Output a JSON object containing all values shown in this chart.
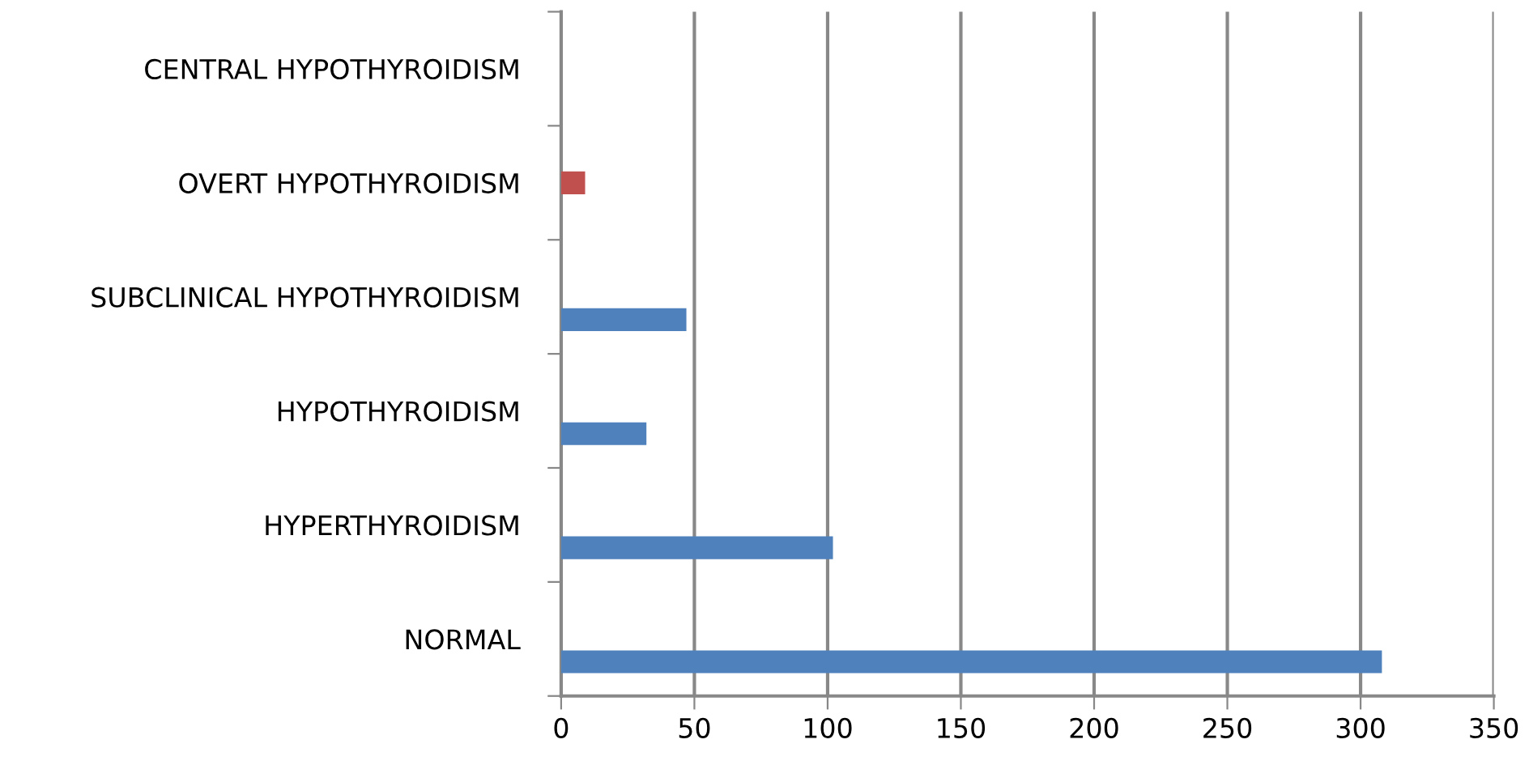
{
  "chart_data": {
    "type": "bar",
    "orientation": "horizontal",
    "categories": [
      "CENTRAL HYPOTHYROIDISM",
      "OVERT HYPOTHYROIDISM",
      "SUBCLINICAL HYPOTHYROIDISM",
      "HYPOTHYROIDISM",
      "HYPERTHYROIDISM",
      "NORMAL"
    ],
    "series": [
      {
        "color": "#4f81bd",
        "values": [
          null,
          null,
          47,
          32,
          102,
          308
        ]
      },
      {
        "color": "#c0504d",
        "values": [
          null,
          9,
          null,
          null,
          null,
          null
        ]
      }
    ],
    "xlim": [
      0,
      350
    ],
    "xticks": [
      0,
      50,
      100,
      150,
      200,
      250,
      300,
      350
    ],
    "grid": "x",
    "legend": false
  }
}
